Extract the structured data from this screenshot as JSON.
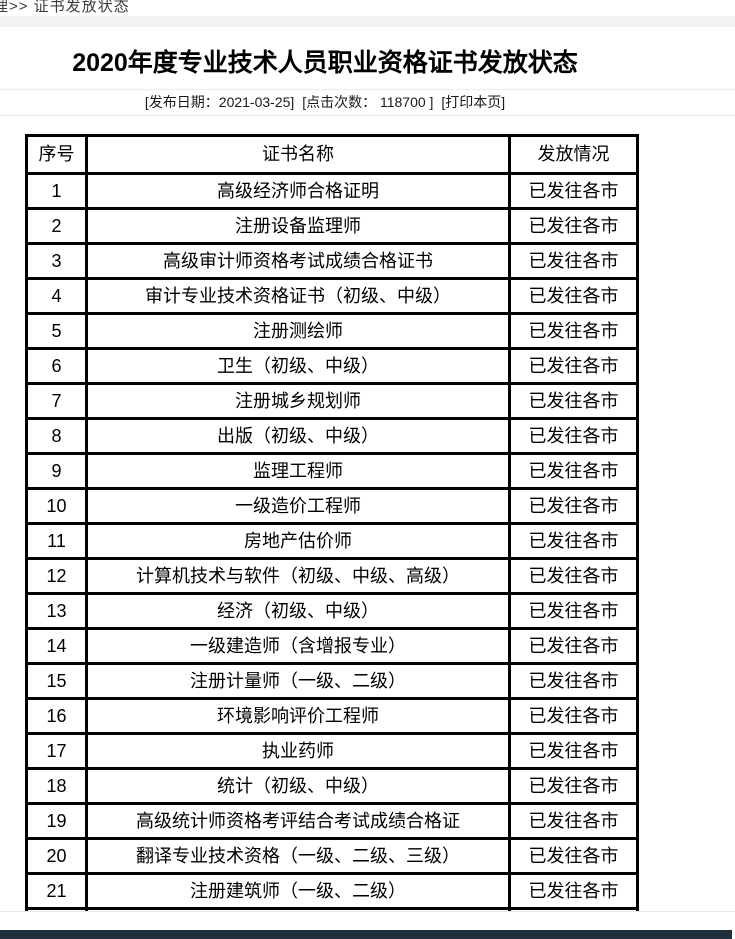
{
  "breadcrumb": {
    "text": "理>> 证书发放状态"
  },
  "page": {
    "title": "2020年度专业技术人员职业资格证书发放状态",
    "meta": {
      "publish_date": "[发布日期：2021-03-25]",
      "hit_count": "[点击次数： 118700 ]",
      "print_label": "[打印本页]"
    }
  },
  "table": {
    "headers": [
      "序号",
      "证书名称",
      "发放情况"
    ],
    "rows": [
      {
        "no": "1",
        "name": "高级经济师合格证明",
        "status": "已发往各市"
      },
      {
        "no": "2",
        "name": "注册设备监理师",
        "status": "已发往各市"
      },
      {
        "no": "3",
        "name": "高级审计师资格考试成绩合格证书",
        "status": "已发往各市"
      },
      {
        "no": "4",
        "name": "审计专业技术资格证书（初级、中级）",
        "status": "已发往各市"
      },
      {
        "no": "5",
        "name": "注册测绘师",
        "status": "已发往各市"
      },
      {
        "no": "6",
        "name": "卫生（初级、中级）",
        "status": "已发往各市"
      },
      {
        "no": "7",
        "name": "注册城乡规划师",
        "status": "已发往各市"
      },
      {
        "no": "8",
        "name": "出版（初级、中级）",
        "status": "已发往各市"
      },
      {
        "no": "9",
        "name": "监理工程师",
        "status": "已发往各市"
      },
      {
        "no": "10",
        "name": "一级造价工程师",
        "status": "已发往各市"
      },
      {
        "no": "11",
        "name": "房地产估价师",
        "status": "已发往各市"
      },
      {
        "no": "12",
        "name": "计算机技术与软件（初级、中级、高级）",
        "status": "已发往各市"
      },
      {
        "no": "13",
        "name": "经济（初级、中级）",
        "status": "已发往各市"
      },
      {
        "no": "14",
        "name": "一级建造师（含增报专业）",
        "status": "已发往各市"
      },
      {
        "no": "15",
        "name": "注册计量师（一级、二级）",
        "status": "已发往各市"
      },
      {
        "no": "16",
        "name": "环境影响评价工程师",
        "status": "已发往各市"
      },
      {
        "no": "17",
        "name": "执业药师",
        "status": "已发往各市"
      },
      {
        "no": "18",
        "name": "统计（初级、中级）",
        "status": "已发往各市"
      },
      {
        "no": "19",
        "name": "高级统计师资格考评结合考试成绩合格证",
        "status": "已发往各市"
      },
      {
        "no": "20",
        "name": "翻译专业技术资格（一级、二级、三级）",
        "status": "已发往各市"
      },
      {
        "no": "21",
        "name": "注册建筑师（一级、二级）",
        "status": "已发往各市"
      }
    ]
  },
  "colors": {
    "footer_bar": "#22303e",
    "top_strip": "#f2f2f2",
    "table_border": "#000000"
  }
}
